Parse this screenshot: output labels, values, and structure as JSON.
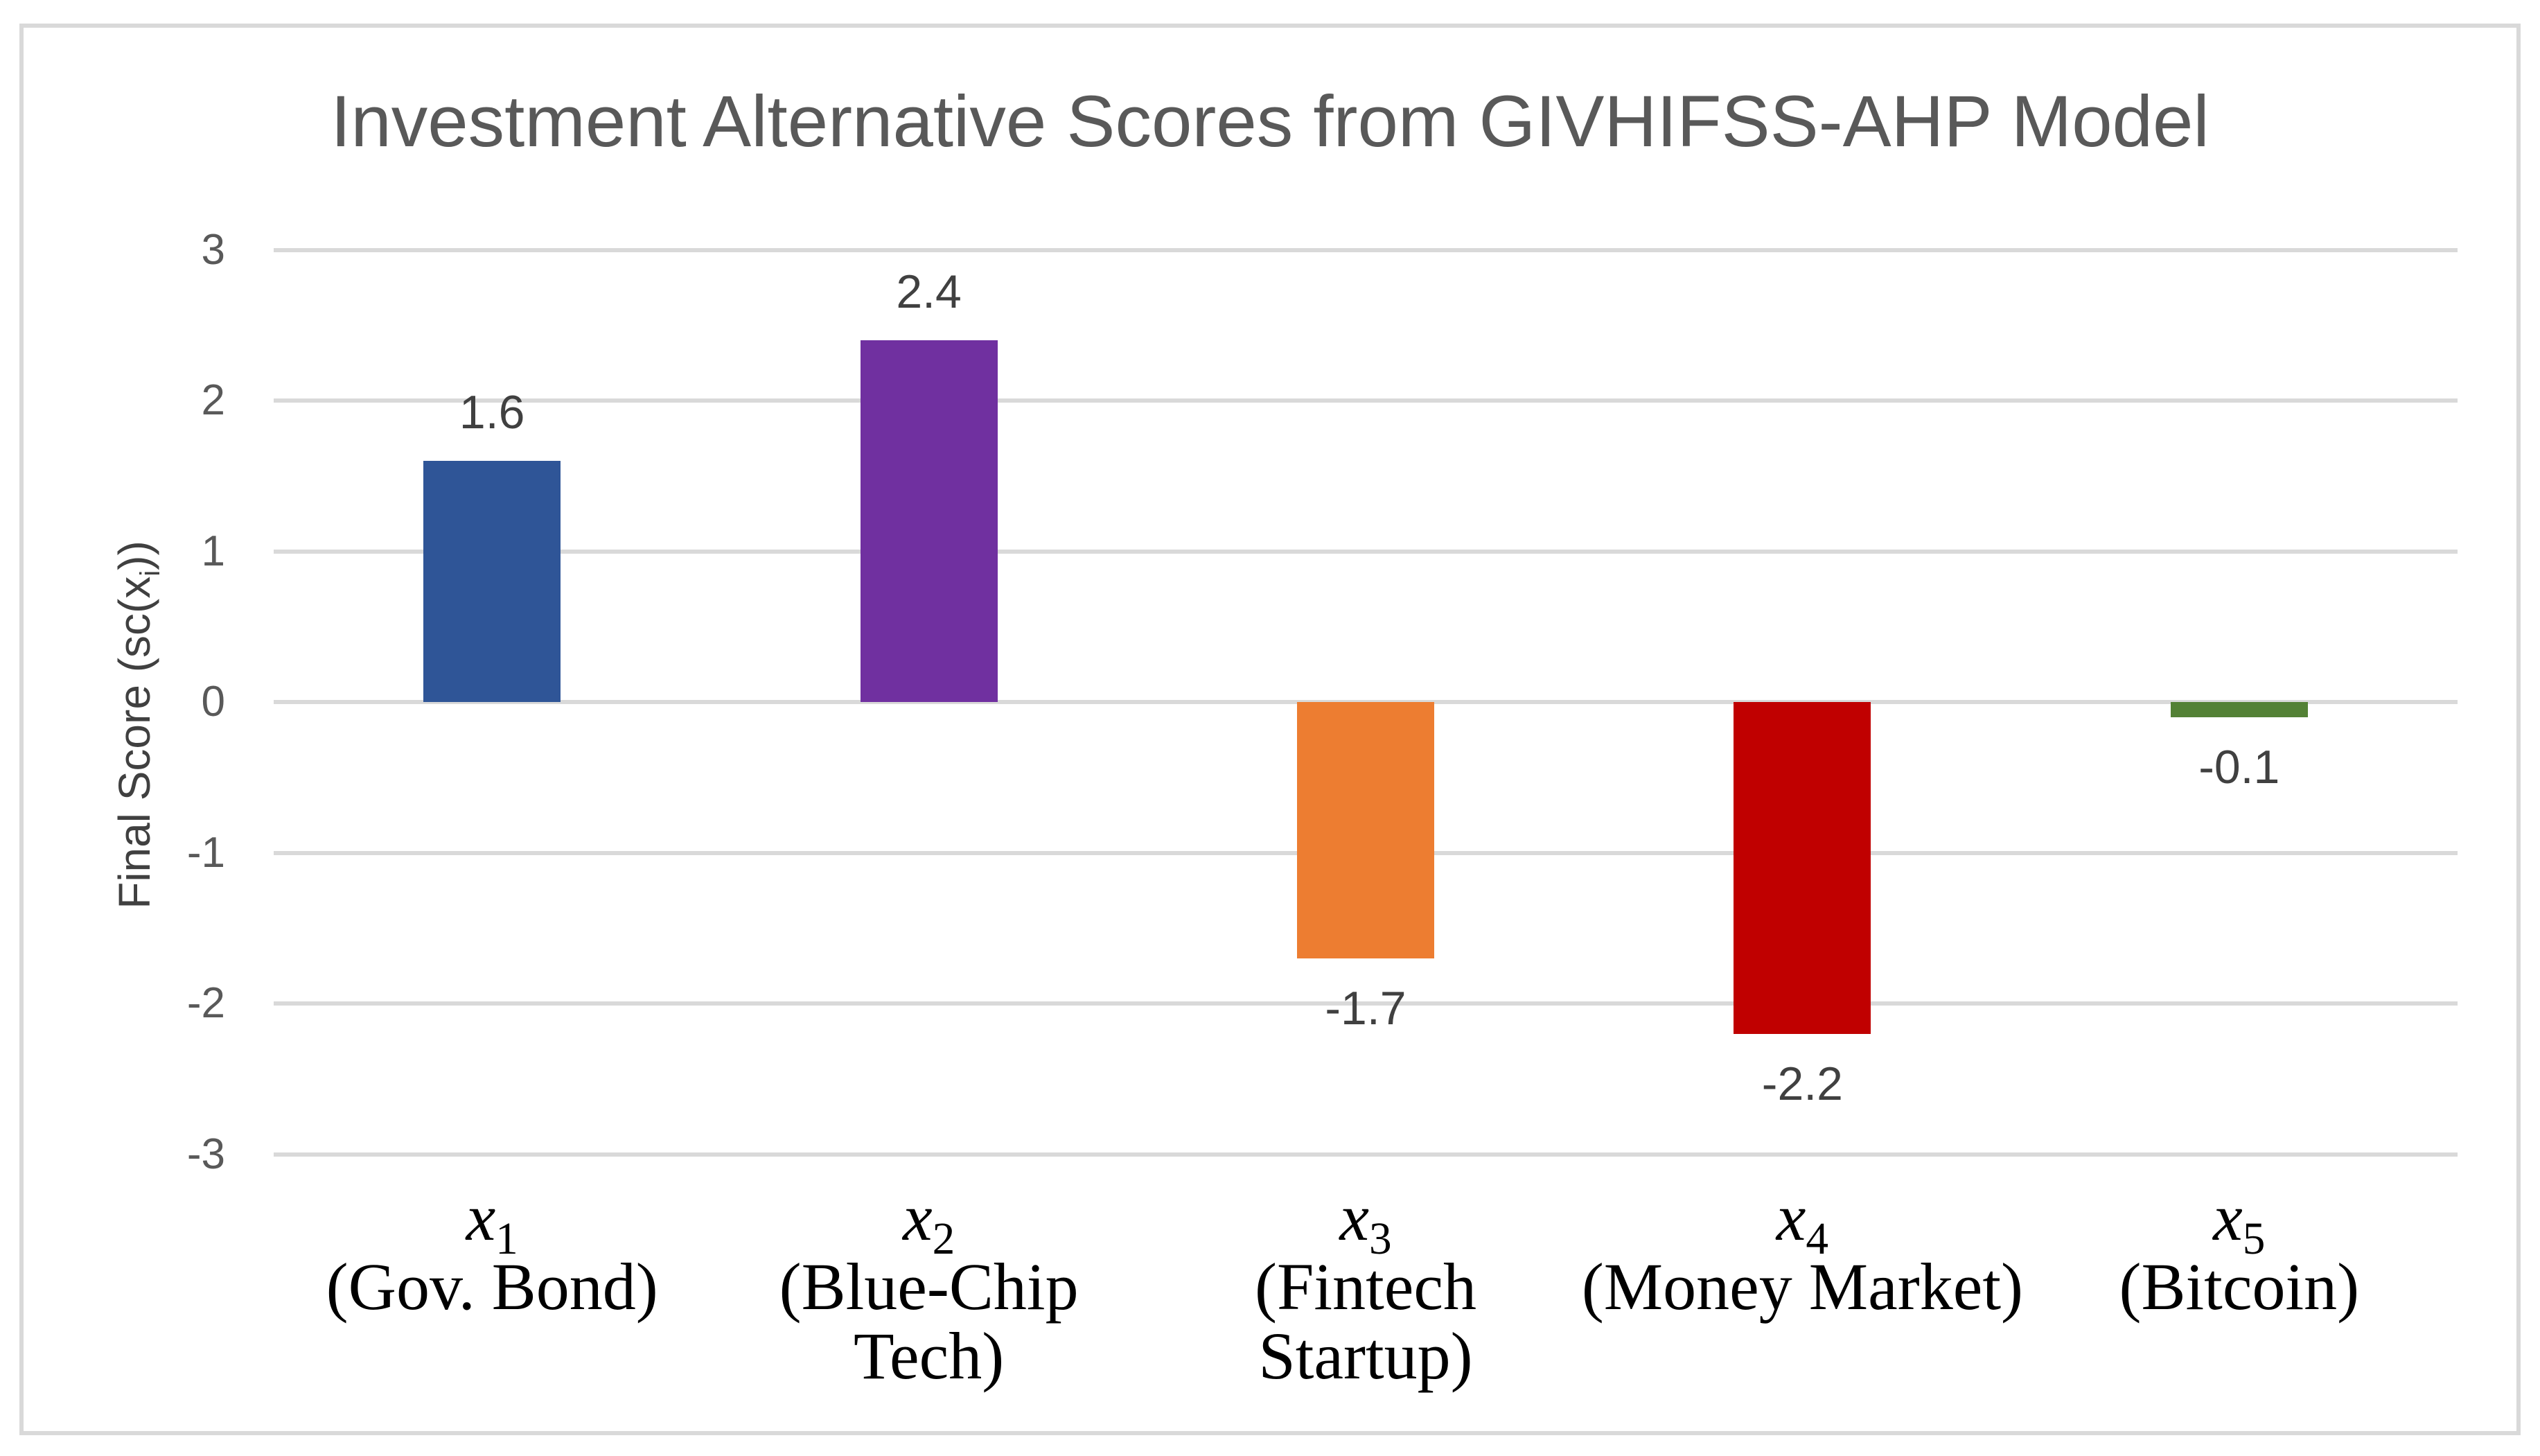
{
  "frame": {
    "border_color": "#D9D9D9"
  },
  "chart_data": {
    "type": "bar",
    "title": "Investment Alternative Scores from GIVHIFSS-AHP Model",
    "ylabel": {
      "prefix": "Final Score (sc(x",
      "sub": "i",
      "suffix": "))"
    },
    "xlabel": "",
    "ylim": [
      -3,
      3
    ],
    "yticks": [
      3,
      2,
      1,
      0,
      -1,
      -2,
      -3
    ],
    "grid": "horizontal",
    "gridline_color": "#D9D9D9",
    "legend": "none",
    "categories": [
      {
        "symbol": "x",
        "sub": "1",
        "name_lines": [
          "(Gov. Bond)"
        ]
      },
      {
        "symbol": "x",
        "sub": "2",
        "name_lines": [
          "(Blue-Chip",
          "Tech)"
        ]
      },
      {
        "symbol": "x",
        "sub": "3",
        "name_lines": [
          "(Fintech",
          "Startup)"
        ]
      },
      {
        "symbol": "x",
        "sub": "4",
        "name_lines": [
          "(Money Market)"
        ]
      },
      {
        "symbol": "x",
        "sub": "5",
        "name_lines": [
          "(Bitcoin)"
        ]
      }
    ],
    "values": [
      1.6,
      2.4,
      -1.7,
      -2.2,
      -0.1
    ],
    "data_labels": [
      "1.6",
      "2.4",
      "-1.7",
      "-2.2",
      "-0.1"
    ],
    "bar_colors": [
      "#2F5597",
      "#7030A0",
      "#ED7D31",
      "#C00000",
      "#538135"
    ],
    "text_colors": {
      "title": "#595959",
      "ticks": "#595959",
      "data_labels": "#404040",
      "axis_title": "#404040",
      "category_labels": "#000000"
    }
  }
}
